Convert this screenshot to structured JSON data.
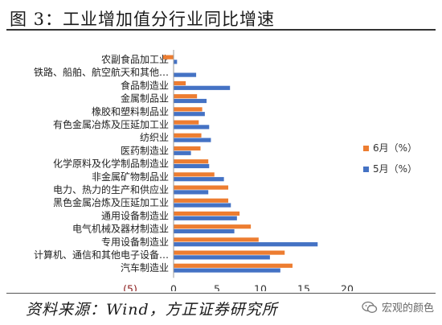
{
  "header": {
    "title": "图 3：工业增加值分行业同比增速"
  },
  "footer": {
    "source": "资料来源：Wind，方正证券研究所",
    "watermark": "宏观的颜色",
    "watermark_icon": "wechat-icon"
  },
  "colors": {
    "series_june": "#ED7D31",
    "series_may": "#4472C4",
    "rule": "#333333"
  },
  "chart_data": {
    "type": "bar",
    "orientation": "horizontal",
    "categories": [
      "农副食品加工业",
      "铁路、船舶、航空航天和其他…",
      "食品制造业",
      "金属制品业",
      "橡胶和塑料制品业",
      "有色金属冶炼及压延加工业",
      "纺织业",
      "医药制造业",
      "化学原料及化学制品制造业",
      "非金属矿物制品业",
      "电力、热力的生产和供应业",
      "黑色金属冶炼及压延加工业",
      "通用设备制造业",
      "电气机械及器材制造业",
      "专用设备制造业",
      "计算机、通信和其他电子设备…",
      "汽车制造业"
    ],
    "series": [
      {
        "name": "6月（%）",
        "values": [
          -1.2,
          0.0,
          1.4,
          2.7,
          3.3,
          2.9,
          3.2,
          3.1,
          4.0,
          4.7,
          6.3,
          6.3,
          7.6,
          8.9,
          9.8,
          12.8,
          13.7
        ]
      },
      {
        "name": "5月（%）",
        "values": [
          0.4,
          2.6,
          6.5,
          3.8,
          3.6,
          4.1,
          4.3,
          2.0,
          4.1,
          5.8,
          4.0,
          6.6,
          7.3,
          7.0,
          16.6,
          11.1,
          12.3
        ]
      }
    ],
    "xlim": [
      -5,
      20
    ],
    "xticks": [
      "(5)",
      "0",
      "5",
      "10",
      "15",
      "20"
    ],
    "xtick_values": [
      -5,
      0,
      5,
      10,
      15,
      20
    ],
    "legend_position": "right",
    "grid": false
  }
}
